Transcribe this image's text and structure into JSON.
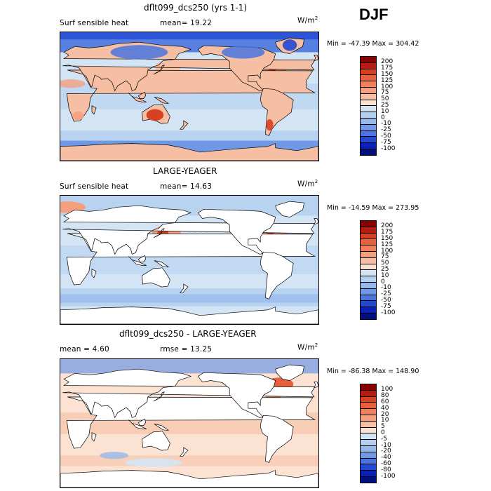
{
  "season": "DJF",
  "colors": {
    "ocean_neutral": "#d9e8f7",
    "land_white": "#ffffff",
    "coast": "#000000"
  },
  "panels": [
    {
      "title": "dflt099_dcs250 (yrs 1-1)",
      "left_label": "Surf sensible heat",
      "center_label": "mean=  19.22",
      "units": "W/m",
      "units_sup": "2",
      "minmax": "Min = -47.39 Max = 304.42",
      "map_style": "filled_land",
      "colorbar": {
        "labels": [
          "200",
          "175",
          "150",
          "125",
          "100",
          "75",
          "50",
          "25",
          "10",
          "0",
          "-10",
          "-25",
          "-50",
          "-75",
          "-100"
        ],
        "colors": [
          "#8b0000",
          "#b81c10",
          "#d8401f",
          "#e8613a",
          "#f0805a",
          "#f4a07f",
          "#f6bfa3",
          "#fbe2d2",
          "#d3e4f5",
          "#b4d0f0",
          "#96b9ec",
          "#6f99e6",
          "#4a74df",
          "#2248d4",
          "#0a20b8",
          "#001080"
        ]
      }
    },
    {
      "title": "LARGE-YEAGER",
      "left_label": "Surf sensible heat",
      "center_label": "mean=  14.63",
      "units": "W/m",
      "units_sup": "2",
      "minmax": "Min = -14.59 Max = 273.95",
      "map_style": "white_land",
      "colorbar": {
        "labels": [
          "200",
          "175",
          "150",
          "125",
          "100",
          "75",
          "50",
          "25",
          "10",
          "0",
          "-10",
          "-25",
          "-50",
          "-75",
          "-100"
        ],
        "colors": [
          "#8b0000",
          "#b81c10",
          "#d8401f",
          "#e8613a",
          "#f0805a",
          "#f4a07f",
          "#f6bfa3",
          "#fbe2d2",
          "#d3e4f5",
          "#b4d0f0",
          "#96b9ec",
          "#6f99e6",
          "#4a74df",
          "#2248d4",
          "#0a20b8",
          "#001080"
        ]
      }
    },
    {
      "title": "dflt099_dcs250 - LARGE-YEAGER",
      "left_label": "mean =    4.60",
      "center_label": "rmse =   13.25",
      "units": "W/m",
      "units_sup": "2",
      "minmax": "Min = -86.38 Max = 148.90",
      "map_style": "diff",
      "colorbar": {
        "labels": [
          "100",
          "80",
          "60",
          "40",
          "20",
          "10",
          "5",
          "0",
          "-5",
          "-10",
          "-20",
          "-40",
          "-60",
          "-80",
          "-100"
        ],
        "colors": [
          "#8b0000",
          "#b81c10",
          "#d8401f",
          "#e8613a",
          "#f0805a",
          "#f4a07f",
          "#f6bfa3",
          "#fbe2d2",
          "#d3e4f5",
          "#b4d0f0",
          "#96b9ec",
          "#6f99e6",
          "#4a74df",
          "#2248d4",
          "#0a20b8",
          "#001080"
        ]
      }
    }
  ],
  "chart_data": [
    {
      "type": "heatmap",
      "title": "dflt099_dcs250 (yrs 1-1)",
      "field": "Surf sensible heat",
      "units": "W/m2",
      "mean": 19.22,
      "min": -47.39,
      "max": 304.42,
      "contour_levels": [
        -100,
        -75,
        -50,
        -25,
        -10,
        0,
        10,
        25,
        50,
        75,
        100,
        125,
        150,
        175,
        200
      ]
    },
    {
      "type": "heatmap",
      "title": "LARGE-YEAGER",
      "field": "Surf sensible heat",
      "units": "W/m2",
      "mean": 14.63,
      "min": -14.59,
      "max": 273.95,
      "contour_levels": [
        -100,
        -75,
        -50,
        -25,
        -10,
        0,
        10,
        25,
        50,
        75,
        100,
        125,
        150,
        175,
        200
      ]
    },
    {
      "type": "heatmap",
      "title": "dflt099_dcs250 - LARGE-YEAGER",
      "units": "W/m2",
      "mean": 4.6,
      "rmse": 13.25,
      "min": -86.38,
      "max": 148.9,
      "contour_levels": [
        -100,
        -80,
        -60,
        -40,
        -20,
        -10,
        -5,
        0,
        5,
        10,
        20,
        40,
        60,
        80,
        100
      ]
    }
  ]
}
